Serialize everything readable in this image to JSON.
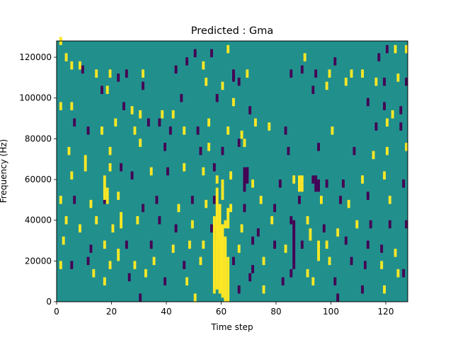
{
  "chart_data": {
    "type": "heatmap",
    "title": "Predicted : Gma",
    "xlabel": "Time step",
    "ylabel": "Frequency (Hz)",
    "xlim": [
      0,
      128
    ],
    "ylim": [
      0,
      128000
    ],
    "x_ticks": [
      0,
      20,
      40,
      60,
      80,
      100,
      120
    ],
    "y_ticks": [
      0,
      20000,
      40000,
      60000,
      80000,
      100000,
      120000
    ],
    "y_tick_labels": [
      "0",
      "20000",
      "40000",
      "60000",
      "80000",
      "100000",
      "120000"
    ],
    "n_time_steps": 128,
    "n_freq_bins": 64,
    "freq_bin_hz": 2000,
    "value_levels": [
      -1,
      0,
      1
    ],
    "colors": {
      "background": "#21908d",
      "low": "#440154",
      "high": "#fde725"
    },
    "grid": false,
    "legend": "none",
    "cells": [
      {
        "t": 1,
        "f": 127000,
        "v": 1
      },
      {
        "t": 3,
        "f": 119000,
        "v": 1
      },
      {
        "t": 5,
        "f": 115000,
        "v": 1
      },
      {
        "t": 8,
        "f": 115000,
        "v": 1
      },
      {
        "t": 9,
        "f": 113000,
        "v": -1
      },
      {
        "t": 14,
        "f": 111000,
        "v": 1
      },
      {
        "t": 19,
        "f": 111000,
        "v": 1
      },
      {
        "t": 25,
        "f": 111000,
        "v": -1
      },
      {
        "t": 31,
        "f": 111000,
        "v": 1
      },
      {
        "t": 43,
        "f": 113000,
        "v": -1
      },
      {
        "t": 47,
        "f": 117000,
        "v": -1
      },
      {
        "t": 50,
        "f": 121000,
        "v": -1
      },
      {
        "t": 53,
        "f": 115000,
        "v": 1
      },
      {
        "t": 56,
        "f": 121000,
        "v": -1
      },
      {
        "t": 62,
        "f": 123000,
        "v": 1
      },
      {
        "t": 64,
        "f": 111000,
        "v": -1
      },
      {
        "t": 69,
        "f": 111000,
        "v": 1
      },
      {
        "t": 85,
        "f": 111000,
        "v": -1
      },
      {
        "t": 89,
        "f": 113000,
        "v": -1
      },
      {
        "t": 90,
        "f": 119000,
        "v": 1
      },
      {
        "t": 94,
        "f": 111000,
        "v": -1
      },
      {
        "t": 99,
        "f": 111000,
        "v": 1
      },
      {
        "t": 101,
        "f": 117000,
        "v": -1
      },
      {
        "t": 107,
        "f": 111000,
        "v": 1
      },
      {
        "t": 111,
        "f": 111000,
        "v": 1
      },
      {
        "t": 117,
        "f": 119000,
        "v": -1
      },
      {
        "t": 120,
        "f": 123000,
        "v": -1
      },
      {
        "t": 123,
        "f": 123000,
        "v": 1
      },
      {
        "t": 127,
        "f": 123000,
        "v": 1
      },
      {
        "t": 16,
        "f": 103000,
        "v": -1
      },
      {
        "t": 18,
        "f": 103000,
        "v": 1
      },
      {
        "t": 22,
        "f": 109000,
        "v": -1
      },
      {
        "t": 31,
        "f": 105000,
        "v": -1
      },
      {
        "t": 54,
        "f": 107000,
        "v": 1
      },
      {
        "t": 60,
        "f": 105000,
        "v": 1
      },
      {
        "t": 64,
        "f": 109000,
        "v": -1
      },
      {
        "t": 66,
        "f": 107000,
        "v": -1
      },
      {
        "t": 93,
        "f": 103000,
        "v": -1
      },
      {
        "t": 98,
        "f": 105000,
        "v": 1
      },
      {
        "t": 105,
        "f": 107000,
        "v": 1
      },
      {
        "t": 116,
        "f": 107000,
        "v": 1
      },
      {
        "t": 119,
        "f": 107000,
        "v": -1
      },
      {
        "t": 124,
        "f": 109000,
        "v": 1
      },
      {
        "t": 127,
        "f": 107000,
        "v": -1
      },
      {
        "t": 1,
        "f": 95000,
        "v": 1
      },
      {
        "t": 5,
        "f": 95000,
        "v": 1
      },
      {
        "t": 24,
        "f": 95000,
        "v": -1
      },
      {
        "t": 27,
        "f": 93000,
        "v": 1
      },
      {
        "t": 30,
        "f": 91000,
        "v": 1
      },
      {
        "t": 38,
        "f": 91000,
        "v": 1
      },
      {
        "t": 42,
        "f": 91000,
        "v": 1
      },
      {
        "t": 45,
        "f": 99000,
        "v": -1
      },
      {
        "t": 58,
        "f": 99000,
        "v": -1
      },
      {
        "t": 64,
        "f": 97000,
        "v": 1
      },
      {
        "t": 70,
        "f": 93000,
        "v": -1
      },
      {
        "t": 113,
        "f": 97000,
        "v": -1
      },
      {
        "t": 119,
        "f": 95000,
        "v": -1
      },
      {
        "t": 122,
        "f": 91000,
        "v": 1
      },
      {
        "t": 125,
        "f": 93000,
        "v": -1
      },
      {
        "t": 6,
        "f": 87000,
        "v": -1
      },
      {
        "t": 11,
        "f": 83000,
        "v": -1
      },
      {
        "t": 16,
        "f": 83000,
        "v": 1
      },
      {
        "t": 21,
        "f": 87000,
        "v": 1
      },
      {
        "t": 28,
        "f": 83000,
        "v": 1
      },
      {
        "t": 33,
        "f": 87000,
        "v": -1
      },
      {
        "t": 37,
        "f": 87000,
        "v": -1
      },
      {
        "t": 41,
        "f": 83000,
        "v": -1
      },
      {
        "t": 46,
        "f": 83000,
        "v": 1
      },
      {
        "t": 51,
        "f": 83000,
        "v": -1
      },
      {
        "t": 55,
        "f": 87000,
        "v": 1
      },
      {
        "t": 62,
        "f": 83000,
        "v": 1
      },
      {
        "t": 67,
        "f": 81000,
        "v": 1
      },
      {
        "t": 72,
        "f": 87000,
        "v": 1
      },
      {
        "t": 77,
        "f": 85000,
        "v": 1
      },
      {
        "t": 83,
        "f": 83000,
        "v": -1
      },
      {
        "t": 100,
        "f": 83000,
        "v": 1
      },
      {
        "t": 116,
        "f": 85000,
        "v": -1
      },
      {
        "t": 120,
        "f": 87000,
        "v": 1
      },
      {
        "t": 125,
        "f": 85000,
        "v": -1
      },
      {
        "t": 4,
        "f": 73000,
        "v": 1
      },
      {
        "t": 10,
        "f": 69000,
        "v": 1
      },
      {
        "t": 19,
        "f": 73000,
        "v": 1
      },
      {
        "t": 30,
        "f": 77000,
        "v": 1
      },
      {
        "t": 39,
        "f": 75000,
        "v": -1
      },
      {
        "t": 52,
        "f": 73000,
        "v": -1
      },
      {
        "t": 55,
        "f": 75000,
        "v": 1
      },
      {
        "t": 60,
        "f": 73000,
        "v": -1
      },
      {
        "t": 66,
        "f": 77000,
        "v": -1
      },
      {
        "t": 68,
        "f": 77000,
        "v": 1
      },
      {
        "t": 84,
        "f": 73000,
        "v": -1
      },
      {
        "t": 95,
        "f": 75000,
        "v": -1
      },
      {
        "t": 108,
        "f": 73000,
        "v": -1
      },
      {
        "t": 115,
        "f": 71000,
        "v": 1
      },
      {
        "t": 120,
        "f": 73000,
        "v": 1
      },
      {
        "t": 127,
        "f": 75000,
        "v": 1
      },
      {
        "t": 5,
        "f": 61000,
        "v": 1
      },
      {
        "t": 10,
        "f": 65000,
        "v": 1
      },
      {
        "t": 19,
        "f": 65000,
        "v": 1
      },
      {
        "t": 23,
        "f": 65000,
        "v": -1
      },
      {
        "t": 27,
        "f": 61000,
        "v": -1
      },
      {
        "t": 34,
        "f": 63000,
        "v": 1
      },
      {
        "t": 40,
        "f": 63000,
        "v": -1
      },
      {
        "t": 46,
        "f": 65000,
        "v": 1
      },
      {
        "t": 53,
        "f": 63000,
        "v": 1
      },
      {
        "t": 57,
        "f": 65000,
        "v": -1
      },
      {
        "t": 58,
        "f": 59000,
        "v": 1
      },
      {
        "t": 63,
        "f": 61000,
        "v": 1
      },
      {
        "t": 69,
        "f": 63000,
        "v": -1
      },
      {
        "t": 71,
        "f": 57000,
        "v": 1
      },
      {
        "t": 81,
        "f": 57000,
        "v": -1
      },
      {
        "t": 86,
        "f": 59000,
        "v": 1
      },
      {
        "t": 89,
        "f": 59000,
        "v": 1
      },
      {
        "t": 93,
        "f": 59000,
        "v": -1
      },
      {
        "t": 98,
        "f": 57000,
        "v": -1
      },
      {
        "t": 104,
        "f": 57000,
        "v": -1
      },
      {
        "t": 111,
        "f": 59000,
        "v": 1
      },
      {
        "t": 119,
        "f": 61000,
        "v": 1
      },
      {
        "t": 126,
        "f": 57000,
        "v": -1
      },
      {
        "t": 1,
        "f": 49000,
        "v": 1
      },
      {
        "t": 6,
        "f": 49000,
        "v": -1
      },
      {
        "t": 12,
        "f": 47000,
        "v": 1
      },
      {
        "t": 17,
        "f": 49000,
        "v": -1
      },
      {
        "t": 22,
        "f": 51000,
        "v": 1
      },
      {
        "t": 31,
        "f": 45000,
        "v": -1
      },
      {
        "t": 36,
        "f": 49000,
        "v": -1
      },
      {
        "t": 44,
        "f": 45000,
        "v": 1
      },
      {
        "t": 49,
        "f": 49000,
        "v": -1
      },
      {
        "t": 54,
        "f": 47000,
        "v": 1
      },
      {
        "t": 57,
        "f": 49000,
        "v": -1
      },
      {
        "t": 63,
        "f": 45000,
        "v": 1
      },
      {
        "t": 68,
        "f": 45000,
        "v": -1
      },
      {
        "t": 74,
        "f": 49000,
        "v": 1
      },
      {
        "t": 79,
        "f": 45000,
        "v": -1
      },
      {
        "t": 88,
        "f": 49000,
        "v": -1
      },
      {
        "t": 96,
        "f": 49000,
        "v": 1
      },
      {
        "t": 103,
        "f": 49000,
        "v": -1
      },
      {
        "t": 106,
        "f": 47000,
        "v": 1
      },
      {
        "t": 113,
        "f": 51000,
        "v": -1
      },
      {
        "t": 121,
        "f": 49000,
        "v": 1
      },
      {
        "t": 3,
        "f": 39000,
        "v": 1
      },
      {
        "t": 8,
        "f": 35000,
        "v": 1
      },
      {
        "t": 14,
        "f": 39000,
        "v": 1
      },
      {
        "t": 20,
        "f": 35000,
        "v": 1
      },
      {
        "t": 29,
        "f": 39000,
        "v": 1
      },
      {
        "t": 37,
        "f": 39000,
        "v": -1
      },
      {
        "t": 43,
        "f": 35000,
        "v": -1
      },
      {
        "t": 49,
        "f": 37000,
        "v": 1
      },
      {
        "t": 56,
        "f": 35000,
        "v": -1
      },
      {
        "t": 61,
        "f": 37000,
        "v": 1
      },
      {
        "t": 67,
        "f": 35000,
        "v": 1
      },
      {
        "t": 73,
        "f": 33000,
        "v": -1
      },
      {
        "t": 78,
        "f": 39000,
        "v": 1
      },
      {
        "t": 85,
        "f": 39000,
        "v": -1
      },
      {
        "t": 91,
        "f": 39000,
        "v": 1
      },
      {
        "t": 97,
        "f": 35000,
        "v": -1
      },
      {
        "t": 102,
        "f": 33000,
        "v": 1
      },
      {
        "t": 109,
        "f": 37000,
        "v": 1
      },
      {
        "t": 114,
        "f": 37000,
        "v": -1
      },
      {
        "t": 121,
        "f": 37000,
        "v": -1
      },
      {
        "t": 127,
        "f": 37000,
        "v": -1
      },
      {
        "t": 2,
        "f": 29000,
        "v": 1
      },
      {
        "t": 12,
        "f": 25000,
        "v": -1
      },
      {
        "t": 17,
        "f": 27000,
        "v": 1
      },
      {
        "t": 25,
        "f": 27000,
        "v": -1
      },
      {
        "t": 34,
        "f": 27000,
        "v": -1
      },
      {
        "t": 42,
        "f": 25000,
        "v": 1
      },
      {
        "t": 48,
        "f": 27000,
        "v": 1
      },
      {
        "t": 53,
        "f": 27000,
        "v": 1
      },
      {
        "t": 59,
        "f": 29000,
        "v": -1
      },
      {
        "t": 66,
        "f": 25000,
        "v": 1
      },
      {
        "t": 71,
        "f": 29000,
        "v": -1
      },
      {
        "t": 79,
        "f": 27000,
        "v": -1
      },
      {
        "t": 83,
        "f": 25000,
        "v": 1
      },
      {
        "t": 89,
        "f": 27000,
        "v": -1
      },
      {
        "t": 98,
        "f": 27000,
        "v": 1
      },
      {
        "t": 105,
        "f": 29000,
        "v": -1
      },
      {
        "t": 113,
        "f": 27000,
        "v": -1
      },
      {
        "t": 118,
        "f": 25000,
        "v": -1
      },
      {
        "t": 123,
        "f": 23000,
        "v": 1
      },
      {
        "t": 1,
        "f": 17000,
        "v": 1
      },
      {
        "t": 5,
        "f": 17000,
        "v": -1
      },
      {
        "t": 11,
        "f": 19000,
        "v": -1
      },
      {
        "t": 19,
        "f": 17000,
        "v": 1
      },
      {
        "t": 28,
        "f": 17000,
        "v": 1
      },
      {
        "t": 35,
        "f": 19000,
        "v": 1
      },
      {
        "t": 46,
        "f": 17000,
        "v": -1
      },
      {
        "t": 52,
        "f": 19000,
        "v": 1
      },
      {
        "t": 64,
        "f": 19000,
        "v": -1
      },
      {
        "t": 71,
        "f": 15000,
        "v": -1
      },
      {
        "t": 75,
        "f": 19000,
        "v": 1
      },
      {
        "t": 85,
        "f": 13000,
        "v": -1
      },
      {
        "t": 91,
        "f": 13000,
        "v": 1
      },
      {
        "t": 99,
        "f": 19000,
        "v": 1
      },
      {
        "t": 107,
        "f": 19000,
        "v": -1
      },
      {
        "t": 112,
        "f": 17000,
        "v": -1
      },
      {
        "t": 118,
        "f": 17000,
        "v": 1
      },
      {
        "t": 124,
        "f": 13000,
        "v": 1
      },
      {
        "t": 126,
        "f": 13000,
        "v": -1
      },
      {
        "t": 13,
        "f": 13000,
        "v": 1
      },
      {
        "t": 17,
        "f": 9000,
        "v": 1
      },
      {
        "t": 26,
        "f": 11000,
        "v": -1
      },
      {
        "t": 32,
        "f": 13000,
        "v": 1
      },
      {
        "t": 39,
        "f": 9000,
        "v": -1
      },
      {
        "t": 47,
        "f": 9000,
        "v": 1
      },
      {
        "t": 58,
        "f": 7000,
        "v": 1
      },
      {
        "t": 66,
        "f": 5000,
        "v": -1
      },
      {
        "t": 70,
        "f": 11000,
        "v": -1
      },
      {
        "t": 75,
        "f": 5000,
        "v": 1
      },
      {
        "t": 82,
        "f": 9000,
        "v": -1
      },
      {
        "t": 93,
        "f": 9000,
        "v": 1
      },
      {
        "t": 101,
        "f": 9000,
        "v": -1
      },
      {
        "t": 111,
        "f": 5000,
        "v": -1
      },
      {
        "t": 119,
        "f": 5000,
        "v": 1
      },
      {
        "t": 30,
        "f": 1000,
        "v": -1
      },
      {
        "t": 50,
        "f": 1000,
        "v": 1
      },
      {
        "t": 102,
        "f": 1000,
        "v": -1
      }
    ],
    "runs": [
      {
        "t": 57,
        "f0": 4000,
        "f1": 42000,
        "v": 1
      },
      {
        "t": 58,
        "f0": 10000,
        "f1": 56000,
        "v": 1
      },
      {
        "t": 59,
        "f0": 4000,
        "f1": 48000,
        "v": 1
      },
      {
        "t": 60,
        "f0": 2000,
        "f1": 38000,
        "v": 1
      },
      {
        "t": 61,
        "f0": 0,
        "f1": 32000,
        "v": 1
      },
      {
        "t": 62,
        "f0": 0,
        "f1": 22000,
        "v": 1
      },
      {
        "t": 60,
        "f0": 50000,
        "f1": 60000,
        "v": 1
      },
      {
        "t": 62,
        "f0": 36000,
        "f1": 46000,
        "v": 1
      },
      {
        "t": 68,
        "f0": 54000,
        "f1": 66000,
        "v": -1
      },
      {
        "t": 69,
        "f0": 58000,
        "f1": 66000,
        "v": -1
      },
      {
        "t": 88,
        "f0": 54000,
        "f1": 62000,
        "v": 1
      },
      {
        "t": 89,
        "f0": 54000,
        "f1": 58000,
        "v": 1
      },
      {
        "t": 94,
        "f0": 54000,
        "f1": 62000,
        "v": -1
      },
      {
        "t": 95,
        "f0": 54000,
        "f1": 60000,
        "v": -1
      },
      {
        "t": 86,
        "f0": 16000,
        "f1": 40000,
        "v": -1
      },
      {
        "t": 59,
        "f0": 26000,
        "f1": 38000,
        "v": 1
      },
      {
        "t": 17,
        "f0": 50000,
        "f1": 62000,
        "v": 1
      },
      {
        "t": 18,
        "f0": 48000,
        "f1": 56000,
        "v": 1
      },
      {
        "t": 22,
        "f0": 20000,
        "f1": 26000,
        "v": 1
      },
      {
        "t": 23,
        "f0": 36000,
        "f1": 44000,
        "v": 1
      },
      {
        "t": 92,
        "f0": 30000,
        "f1": 36000,
        "v": 1
      },
      {
        "t": 95,
        "f0": 20000,
        "f1": 30000,
        "v": 1
      }
    ]
  }
}
